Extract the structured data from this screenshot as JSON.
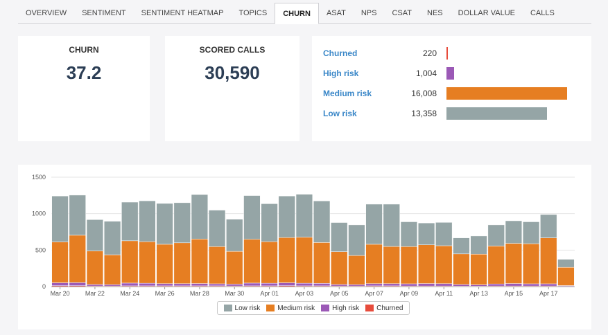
{
  "tabs": [
    {
      "label": "OVERVIEW"
    },
    {
      "label": "SENTIMENT"
    },
    {
      "label": "SENTIMENT HEATMAP"
    },
    {
      "label": "TOPICS"
    },
    {
      "label": "CHURN",
      "active": true
    },
    {
      "label": "ASAT"
    },
    {
      "label": "NPS"
    },
    {
      "label": "CSAT"
    },
    {
      "label": "NES"
    },
    {
      "label": "DOLLAR VALUE"
    },
    {
      "label": "CALLS"
    }
  ],
  "kpis": {
    "churn": {
      "title": "CHURN",
      "value": "37.2"
    },
    "scored": {
      "title": "SCORED CALLS",
      "value": "30,590"
    }
  },
  "risk": {
    "items": [
      {
        "label": "Churned",
        "value_text": "220",
        "value": 220,
        "color": "#e74c3c"
      },
      {
        "label": "High risk",
        "value_text": "1,004",
        "value": 1004,
        "color": "#9b59b6"
      },
      {
        "label": "Medium risk",
        "value_text": "16,008",
        "value": 16008,
        "color": "#e67e22"
      },
      {
        "label": "Low risk",
        "value_text": "13,358",
        "value": 13358,
        "color": "#95a5a6"
      }
    ]
  },
  "colors": {
    "low": "#95a5a6",
    "medium": "#e67e22",
    "high": "#9b59b6",
    "churned": "#e74c3c",
    "link": "#3a87c8",
    "kpi": "#2c3e55"
  },
  "chart_data": {
    "type": "bar",
    "stacked": true,
    "grid": true,
    "legend_position": "bottom-center",
    "ylim": [
      0,
      1500
    ],
    "yticks": [
      "0",
      "500",
      "1000",
      "1500"
    ],
    "categories": [
      "Mar 20",
      "Mar 21",
      "Mar 22",
      "Mar 23",
      "Mar 24",
      "Mar 25",
      "Mar 26",
      "Mar 27",
      "Mar 28",
      "Mar 29",
      "Mar 30",
      "Mar 31",
      "Apr 01",
      "Apr 02",
      "Apr 03",
      "Apr 04",
      "Apr 05",
      "Apr 06",
      "Apr 07",
      "Apr 08",
      "Apr 09",
      "Apr 10",
      "Apr 11",
      "Apr 12",
      "Apr 13",
      "Apr 14",
      "Apr 15",
      "Apr 16",
      "Apr 17",
      "Apr 18"
    ],
    "xtick_labels": [
      "Mar 20",
      "",
      "Mar 22",
      "",
      "Mar 24",
      "",
      "Mar 26",
      "",
      "Mar 28",
      "",
      "Mar 30",
      "",
      "Apr 01",
      "",
      "Apr 03",
      "",
      "Apr 05",
      "",
      "Apr 07",
      "",
      "Apr 09",
      "",
      "Apr 11",
      "",
      "Apr 13",
      "",
      "Apr 15",
      "",
      "Apr 17",
      ""
    ],
    "series": [
      {
        "name": "Churned",
        "color": "#e74c3c",
        "values": [
          12,
          12,
          8,
          8,
          10,
          10,
          10,
          10,
          10,
          10,
          8,
          10,
          10,
          12,
          10,
          10,
          8,
          8,
          10,
          10,
          8,
          8,
          8,
          6,
          6,
          8,
          8,
          8,
          8,
          4
        ]
      },
      {
        "name": "High risk",
        "color": "#9b59b6",
        "values": [
          40,
          42,
          20,
          18,
          38,
          36,
          30,
          30,
          32,
          28,
          25,
          38,
          36,
          40,
          36,
          34,
          20,
          18,
          30,
          30,
          30,
          34,
          32,
          22,
          18,
          28,
          34,
          30,
          30,
          10
        ]
      },
      {
        "name": "Medium risk",
        "color": "#e67e22",
        "values": [
          560,
          650,
          460,
          410,
          580,
          570,
          540,
          560,
          610,
          510,
          450,
          600,
          570,
          620,
          630,
          560,
          450,
          400,
          540,
          510,
          510,
          530,
          520,
          420,
          420,
          520,
          550,
          550,
          630,
          250
        ]
      },
      {
        "name": "Low risk",
        "color": "#95a5a6",
        "values": [
          630,
          550,
          430,
          460,
          530,
          560,
          560,
          550,
          610,
          500,
          440,
          600,
          520,
          570,
          590,
          570,
          400,
          420,
          550,
          580,
          340,
          300,
          320,
          220,
          250,
          290,
          310,
          300,
          320,
          110
        ]
      }
    ],
    "legend": [
      "Low risk",
      "Medium risk",
      "High risk",
      "Churned"
    ]
  }
}
